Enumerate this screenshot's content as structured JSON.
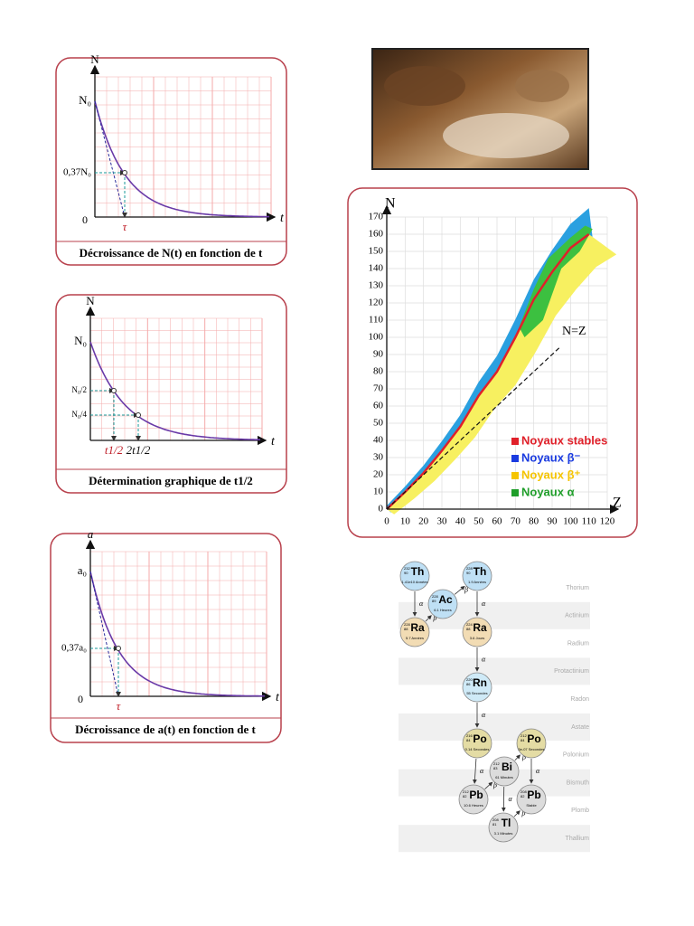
{
  "figures": [
    {
      "axis_y": "N",
      "y0": "N₀",
      "y_marks": [
        "0,37N₀"
      ],
      "origin": "0",
      "x_marks": [
        "τ"
      ],
      "axis_x": "t",
      "caption": "Décroissance de N(t) en fonction de t"
    },
    {
      "axis_y": "N",
      "y0": "N₀",
      "y_marks": [
        "N₀/2",
        "N₀/4"
      ],
      "x_marks": [
        "t1/2",
        "2t1/2"
      ],
      "axis_x": "t",
      "caption": "Détermination graphique de t1/2"
    },
    {
      "axis_y": "a",
      "y0": "a₀",
      "y_marks": [
        "0,37a₀"
      ],
      "origin": "0",
      "x_marks": [
        "τ"
      ],
      "axis_x": "t",
      "caption": "Décroissance de a(t) en fonction de t"
    }
  ],
  "nz_chart": {
    "y_label": "N",
    "x_label": "Z",
    "xlim": [
      0,
      120
    ],
    "xticks": [
      0,
      10,
      20,
      30,
      40,
      50,
      60,
      70,
      80,
      90,
      100,
      110,
      120
    ],
    "ylim": [
      0,
      170
    ],
    "yticks": [
      0,
      10,
      20,
      30,
      40,
      50,
      60,
      70,
      80,
      90,
      100,
      110,
      120,
      130,
      140,
      150,
      160,
      170
    ],
    "annotation": "N=Z",
    "legend": [
      {
        "name": "Noyaux stables",
        "color": "#e0202a"
      },
      {
        "name": "Noyaux β⁻",
        "color": "#1a3be0"
      },
      {
        "name": "Noyaux β⁺",
        "color": "#f5c400"
      },
      {
        "name": "Noyaux α",
        "color": "#1f9e2a"
      }
    ]
  },
  "decay_chain": {
    "elements": [
      "Thorium",
      "Actinium",
      "Radium",
      "Protactinium",
      "Radon",
      "Astate",
      "Polonium",
      "Bismuth",
      "Plomb",
      "Thallium"
    ],
    "nodes": [
      {
        "symbol": "Th",
        "mass": "232",
        "z": "90",
        "half_life": "1.41e10 Années"
      },
      {
        "symbol": "Ac",
        "mass": "228",
        "z": "89",
        "half_life": "6.1 Heures"
      },
      {
        "symbol": "Th",
        "mass": "228",
        "z": "90",
        "half_life": "1.9 Années"
      },
      {
        "symbol": "Ra",
        "mass": "228",
        "z": "88",
        "half_life": "5.7 Années"
      },
      {
        "symbol": "Ra",
        "mass": "224",
        "z": "88",
        "half_life": "3.6 Jours"
      },
      {
        "symbol": "Rn",
        "mass": "220",
        "z": "86",
        "half_life": "55 Secondes"
      },
      {
        "symbol": "Po",
        "mass": "216",
        "z": "84",
        "half_life": "0.14 Secondes"
      },
      {
        "symbol": "Bi",
        "mass": "212",
        "z": "83",
        "half_life": "61 Minutes"
      },
      {
        "symbol": "Po",
        "mass": "212",
        "z": "84",
        "half_life": "3e-07 Secondes"
      },
      {
        "symbol": "Pb",
        "mass": "212",
        "z": "82",
        "half_life": "10.6 Heures"
      },
      {
        "symbol": "Pb",
        "mass": "208",
        "z": "82",
        "half_life": "Stable"
      },
      {
        "symbol": "Tl",
        "mass": "208",
        "z": "81",
        "half_life": "3.1 Minutes"
      }
    ],
    "edge_labels": [
      "α",
      "β",
      "β",
      "α",
      "α",
      "α",
      "α",
      "β",
      "β",
      "α",
      "α",
      "β"
    ]
  }
}
